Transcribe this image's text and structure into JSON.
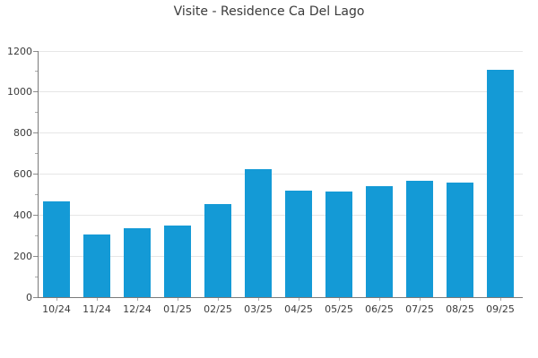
{
  "title": "Visite - Residence Ca Del Lago",
  "chart_data": {
    "type": "bar",
    "title": "Visite - Residence Ca Del Lago",
    "categories": [
      "10/24",
      "11/24",
      "12/24",
      "01/25",
      "02/25",
      "03/25",
      "04/25",
      "05/25",
      "06/25",
      "07/25",
      "08/25",
      "09/25"
    ],
    "values": [
      466,
      305,
      337,
      351,
      456,
      623,
      520,
      513,
      542,
      568,
      560,
      1107
    ],
    "xlabel": "",
    "ylabel": "",
    "ylim": [
      0,
      1200
    ],
    "yticks": [
      0,
      200,
      400,
      600,
      800,
      1000,
      1200
    ],
    "minor_tick_step": 100,
    "grid": true,
    "legend_position": "none",
    "bar_color": "#149ad6",
    "grid_color": "#e6e6e6",
    "spine_color": "#7a7a7a",
    "text_color": "#3b3b3b"
  }
}
